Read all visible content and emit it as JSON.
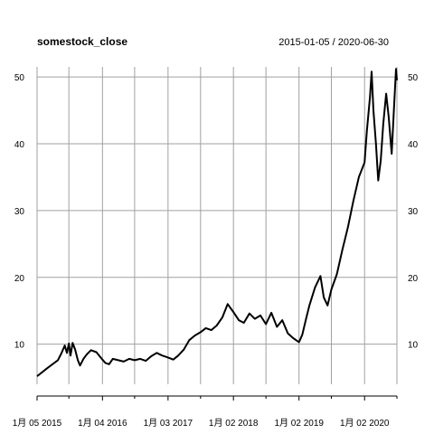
{
  "chart_data": {
    "type": "line",
    "title": "somestock_close",
    "subtitle": "2015-01-05 / 2020-06-30",
    "xlabel": "",
    "ylabel": "",
    "xlim": [
      "2015-01-05",
      "2020-06-30"
    ],
    "ylim": [
      4,
      51.5
    ],
    "grid": true,
    "x_ticks": [
      {
        "date": "2015-01-05",
        "label": "1月 05 2015"
      },
      {
        "date": "2016-01-04",
        "label": "1月 04 2016"
      },
      {
        "date": "2017-01-03",
        "label": "1月 03 2017"
      },
      {
        "date": "2018-01-02",
        "label": "1月 02 2018"
      },
      {
        "date": "2019-01-02",
        "label": "1月 02 2019"
      },
      {
        "date": "2020-01-02",
        "label": "1月 02 2020"
      }
    ],
    "x_minor_ticks": [
      "2015-07-01",
      "2016-07-01",
      "2017-07-03",
      "2018-07-02",
      "2019-07-01",
      "2020-06-30"
    ],
    "y_ticks": [
      10,
      20,
      30,
      40,
      50
    ],
    "series": [
      {
        "color": "#000000",
        "points": [
          [
            "2015-01-05",
            5.2
          ],
          [
            "2015-02-02",
            5.8
          ],
          [
            "2015-03-02",
            6.4
          ],
          [
            "2015-04-01",
            7.0
          ],
          [
            "2015-05-01",
            7.6
          ],
          [
            "2015-05-20",
            8.6
          ],
          [
            "2015-06-08",
            9.8
          ],
          [
            "2015-06-20",
            8.7
          ],
          [
            "2015-07-01",
            10.1
          ],
          [
            "2015-07-10",
            8.3
          ],
          [
            "2015-07-22",
            10.2
          ],
          [
            "2015-08-05",
            9.2
          ],
          [
            "2015-08-20",
            7.6
          ],
          [
            "2015-09-01",
            6.8
          ],
          [
            "2015-09-20",
            7.8
          ],
          [
            "2015-10-10",
            8.5
          ],
          [
            "2015-11-01",
            9.1
          ],
          [
            "2015-12-01",
            8.8
          ],
          [
            "2016-01-04",
            7.7
          ],
          [
            "2016-01-20",
            7.2
          ],
          [
            "2016-02-10",
            7.0
          ],
          [
            "2016-03-01",
            7.8
          ],
          [
            "2016-04-01",
            7.6
          ],
          [
            "2016-05-01",
            7.4
          ],
          [
            "2016-06-01",
            7.8
          ],
          [
            "2016-07-01",
            7.6
          ],
          [
            "2016-08-01",
            7.8
          ],
          [
            "2016-09-01",
            7.5
          ],
          [
            "2016-10-01",
            8.2
          ],
          [
            "2016-11-01",
            8.7
          ],
          [
            "2016-12-01",
            8.3
          ],
          [
            "2017-01-03",
            8.0
          ],
          [
            "2017-02-01",
            7.7
          ],
          [
            "2017-03-01",
            8.3
          ],
          [
            "2017-04-01",
            9.2
          ],
          [
            "2017-05-01",
            10.6
          ],
          [
            "2017-06-01",
            11.3
          ],
          [
            "2017-07-03",
            11.8
          ],
          [
            "2017-08-01",
            12.4
          ],
          [
            "2017-09-01",
            12.1
          ],
          [
            "2017-10-01",
            12.8
          ],
          [
            "2017-11-01",
            14.0
          ],
          [
            "2017-12-01",
            16.0
          ],
          [
            "2018-01-02",
            14.8
          ],
          [
            "2018-02-01",
            13.6
          ],
          [
            "2018-03-01",
            13.2
          ],
          [
            "2018-04-01",
            14.6
          ],
          [
            "2018-05-01",
            13.8
          ],
          [
            "2018-06-01",
            14.3
          ],
          [
            "2018-07-02",
            13.0
          ],
          [
            "2018-08-01",
            14.7
          ],
          [
            "2018-09-01",
            12.6
          ],
          [
            "2018-10-01",
            13.6
          ],
          [
            "2018-11-01",
            11.6
          ],
          [
            "2018-12-01",
            10.9
          ],
          [
            "2019-01-02",
            10.3
          ],
          [
            "2019-01-20",
            11.4
          ],
          [
            "2019-02-10",
            13.8
          ],
          [
            "2019-03-01",
            15.8
          ],
          [
            "2019-04-01",
            18.5
          ],
          [
            "2019-05-01",
            20.2
          ],
          [
            "2019-05-20",
            17.0
          ],
          [
            "2019-06-10",
            15.8
          ],
          [
            "2019-07-01",
            18.2
          ],
          [
            "2019-08-01",
            20.5
          ],
          [
            "2019-09-01",
            24.2
          ],
          [
            "2019-10-01",
            27.5
          ],
          [
            "2019-11-01",
            31.5
          ],
          [
            "2019-12-01",
            35.0
          ],
          [
            "2020-01-02",
            37.2
          ],
          [
            "2020-01-15",
            42.0
          ],
          [
            "2020-02-01",
            47.0
          ],
          [
            "2020-02-10",
            50.8
          ],
          [
            "2020-02-20",
            45.0
          ],
          [
            "2020-03-05",
            40.0
          ],
          [
            "2020-03-18",
            34.5
          ],
          [
            "2020-04-01",
            37.5
          ],
          [
            "2020-04-15",
            43.0
          ],
          [
            "2020-05-01",
            47.5
          ],
          [
            "2020-05-15",
            44.0
          ],
          [
            "2020-06-01",
            38.5
          ],
          [
            "2020-06-15",
            46.0
          ],
          [
            "2020-06-25",
            51.2
          ],
          [
            "2020-06-30",
            49.5
          ]
        ]
      }
    ]
  }
}
